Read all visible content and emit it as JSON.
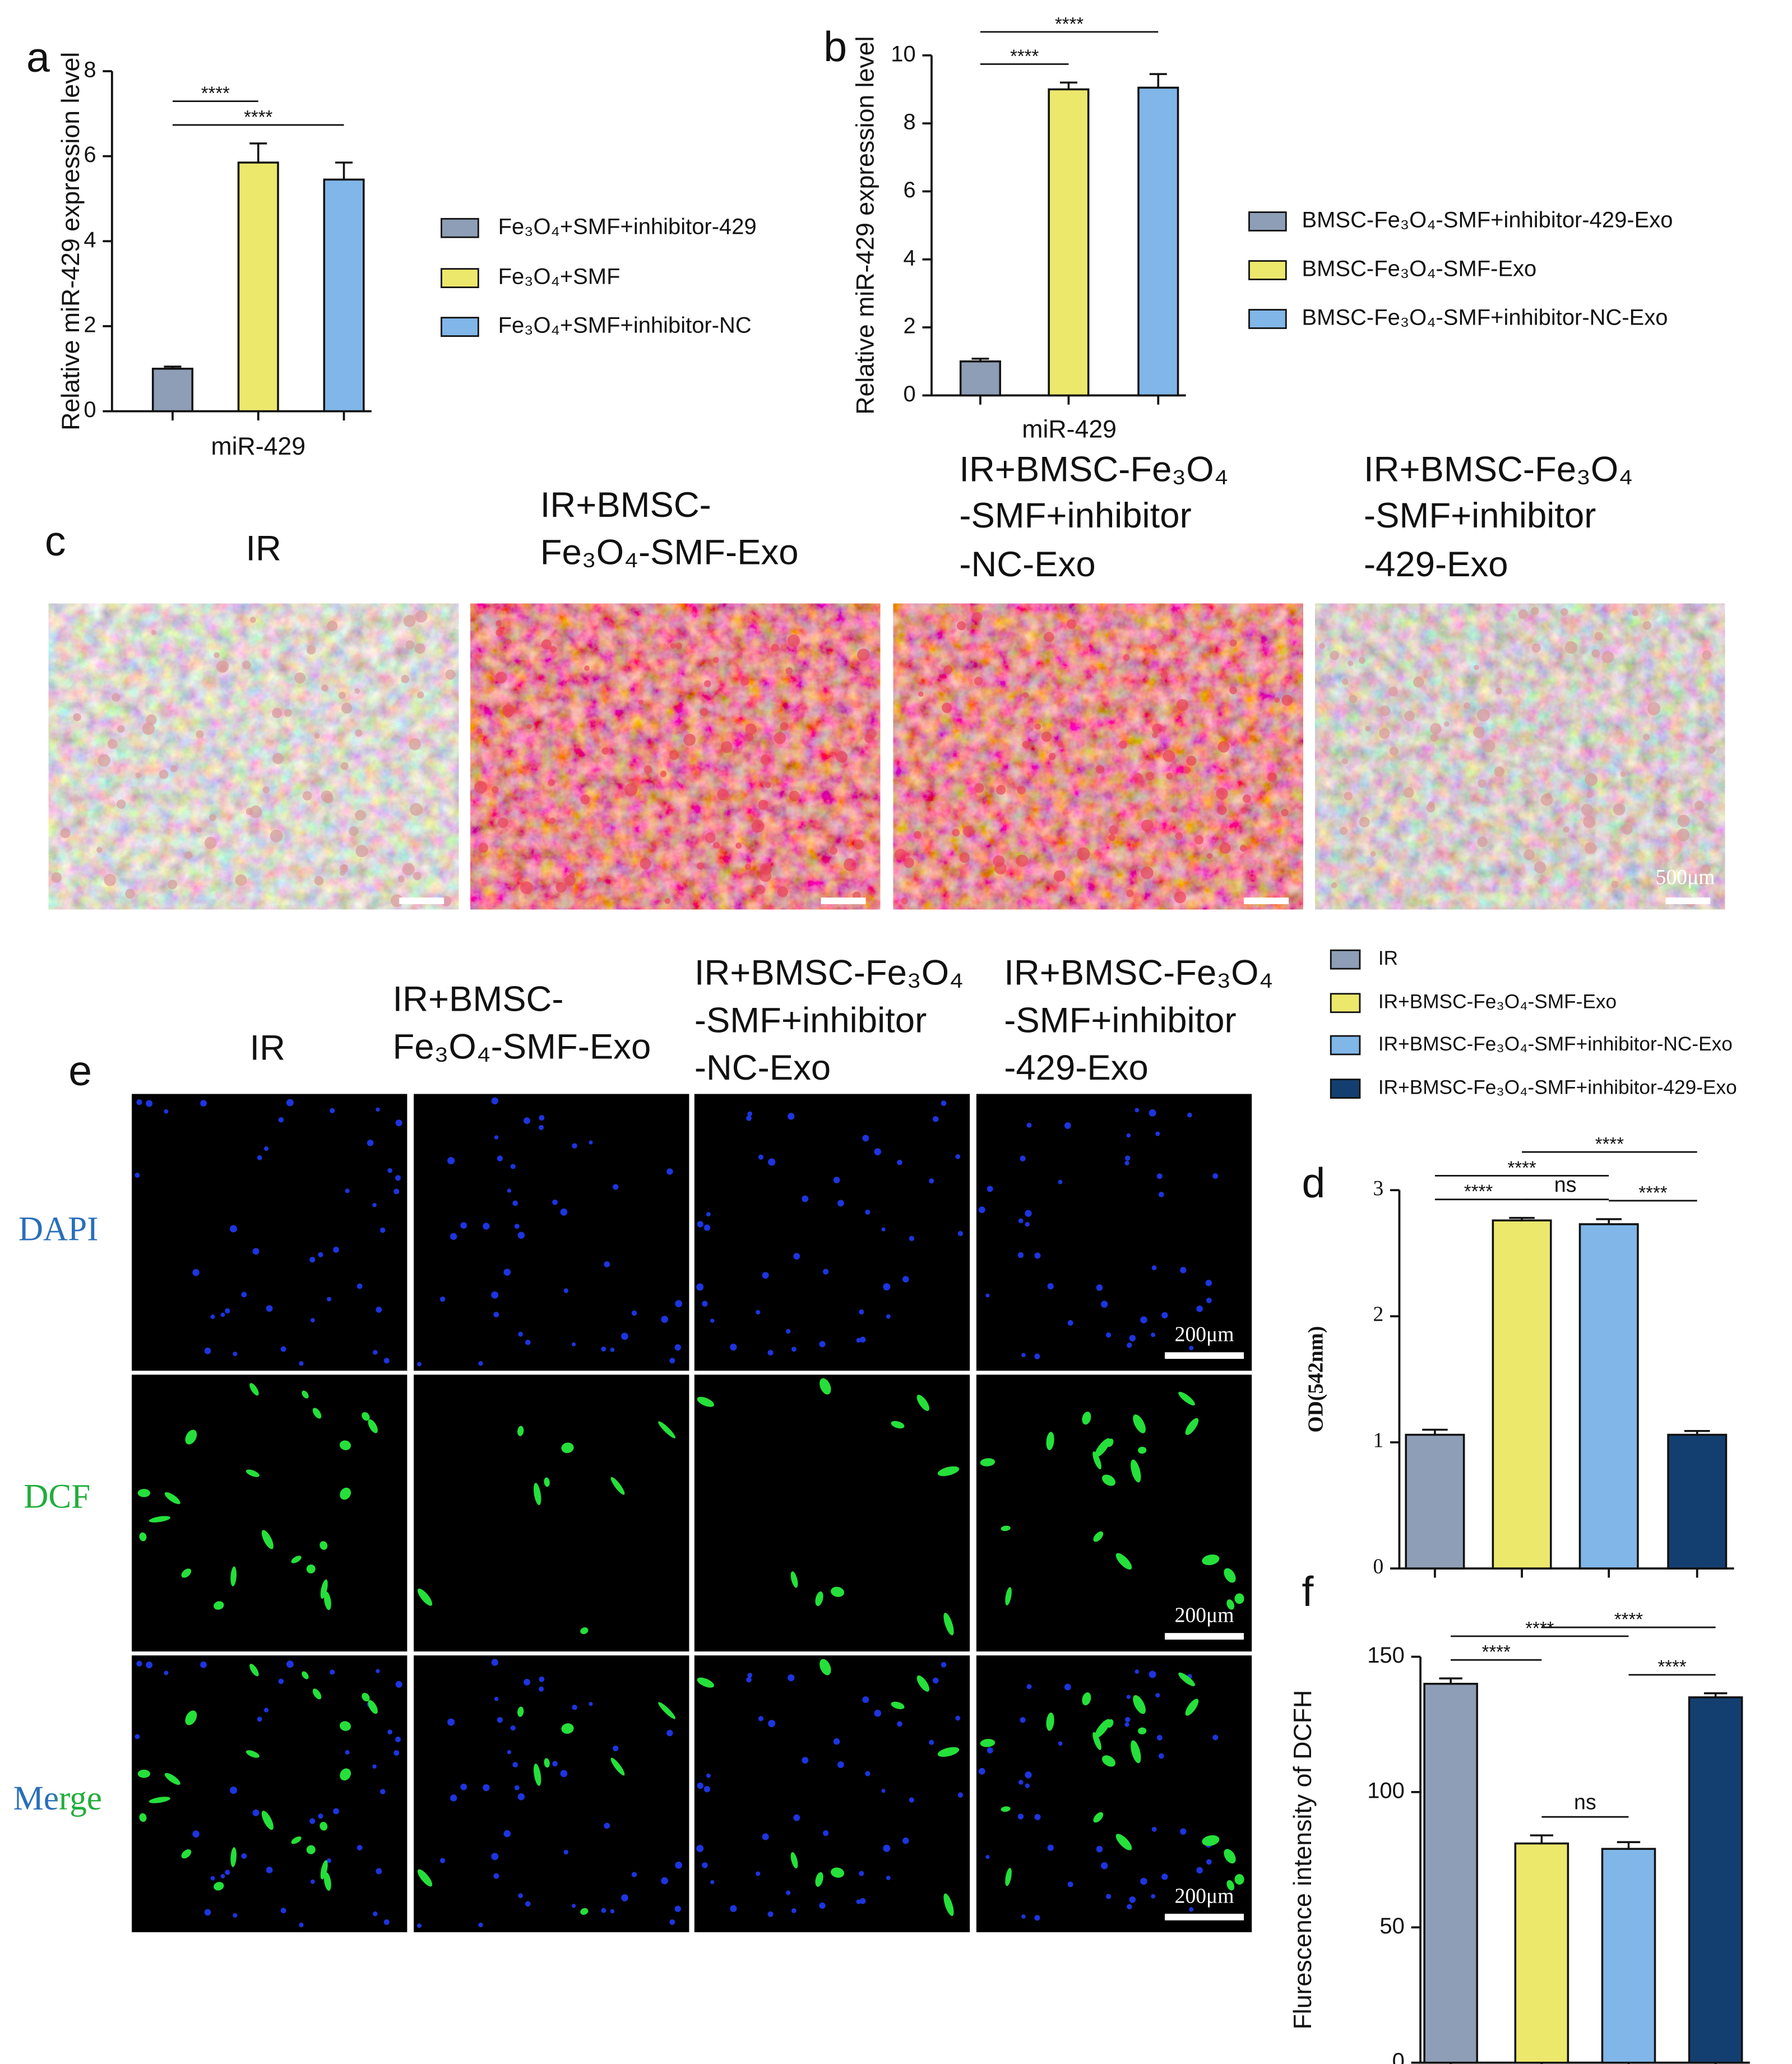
{
  "chart_data": [
    {
      "type": "bar",
      "panel": "a",
      "ylabel": "Relative miR-429 expression level",
      "categories": [
        "miR-429"
      ],
      "series": [
        {
          "name": "Fe₃O₄+SMF+inhibitor-429",
          "color": "#8e9eb6",
          "values": [
            1.0
          ],
          "errors": [
            0.05
          ]
        },
        {
          "name": "Fe₃O₄+SMF",
          "color": "#ece86c",
          "values": [
            5.85
          ],
          "errors": [
            0.45
          ]
        },
        {
          "name": "Fe₃O₄+SMF+inhibitor-NC",
          "color": "#80b6e8",
          "values": [
            5.45
          ],
          "errors": [
            0.4
          ]
        }
      ],
      "ylim": [
        0,
        8
      ],
      "yticks": [
        0,
        2,
        4,
        6,
        8
      ],
      "comparisons": [
        {
          "groups": [
            0,
            2
          ],
          "label": "****"
        },
        {
          "groups": [
            0,
            1
          ],
          "label": "****"
        }
      ]
    },
    {
      "type": "bar",
      "panel": "b",
      "ylabel": "Relative miR-429 expression level",
      "categories": [
        "miR-429"
      ],
      "series": [
        {
          "name": "BMSC-Fe₃O₄-SMF+inhibitor-429-Exo",
          "color": "#8e9eb6",
          "values": [
            1.0
          ],
          "errors": [
            0.08
          ]
        },
        {
          "name": "BMSC-Fe₃O₄-SMF-Exo",
          "color": "#ece86c",
          "values": [
            9.0
          ],
          "errors": [
            0.2
          ]
        },
        {
          "name": "BMSC-Fe₃O₄-SMF+inhibitor-NC-Exo",
          "color": "#80b6e8",
          "values": [
            9.05
          ],
          "errors": [
            0.4
          ]
        }
      ],
      "ylim": [
        0,
        10
      ],
      "yticks": [
        0,
        2,
        4,
        6,
        8,
        10
      ],
      "comparisons": [
        {
          "groups": [
            0,
            1
          ],
          "label": "****"
        },
        {
          "groups": [
            0,
            2
          ],
          "label": "****"
        }
      ]
    },
    {
      "type": "bar",
      "panel": "d",
      "ylabel": "OD(542nm)",
      "categories": [
        null
      ],
      "series": [
        {
          "name": "IR",
          "color": "#8e9eb6",
          "values": [
            1.06
          ],
          "errors": [
            0.04
          ]
        },
        {
          "name": "IR+BMSC-Fe₃O₄-SMF-Exo",
          "color": "#ece86c",
          "values": [
            2.76
          ],
          "errors": [
            0.02
          ]
        },
        {
          "name": "IR+BMSC-Fe₃O₄-SMF+inhibitor-NC-Exo",
          "color": "#80b6e8",
          "values": [
            2.73
          ],
          "errors": [
            0.04
          ]
        },
        {
          "name": "IR+BMSC-Fe₃O₄-SMF+inhibitor-429-Exo",
          "color": "#133f70",
          "values": [
            1.06
          ],
          "errors": [
            0.03
          ]
        }
      ],
      "ylim": [
        0,
        3
      ],
      "yticks": [
        0,
        1,
        2,
        3
      ],
      "comparisons": [
        {
          "groups": [
            0,
            1
          ],
          "label": "****"
        },
        {
          "groups": [
            1,
            2
          ],
          "label": "ns"
        },
        {
          "groups": [
            2,
            3
          ],
          "label": "****"
        },
        {
          "groups": [
            0,
            2
          ],
          "label": "****"
        },
        {
          "groups": [
            1,
            3
          ],
          "label": "****"
        }
      ]
    },
    {
      "type": "bar",
      "panel": "f",
      "ylabel": "Flurescence intensity of DCFH",
      "categories": [
        null
      ],
      "series": [
        {
          "color": "#8e9eb6",
          "values": [
            140
          ],
          "errors": [
            2
          ]
        },
        {
          "color": "#ece86c",
          "values": [
            81
          ],
          "errors": [
            3
          ]
        },
        {
          "color": "#80b6e8",
          "values": [
            79
          ],
          "errors": [
            2.5
          ]
        },
        {
          "color": "#133f70",
          "values": [
            135
          ],
          "errors": [
            1.5
          ]
        }
      ],
      "ylim": [
        0,
        150
      ],
      "yticks": [
        0,
        50,
        100,
        150
      ],
      "comparisons": [
        {
          "groups": [
            0,
            1
          ],
          "label": "****"
        },
        {
          "groups": [
            1,
            2
          ],
          "label": "ns"
        },
        {
          "groups": [
            2,
            3
          ],
          "label": "****"
        },
        {
          "groups": [
            0,
            2
          ],
          "label": "****"
        },
        {
          "groups": [
            1,
            3
          ],
          "label": "****"
        }
      ]
    }
  ],
  "panel_c": {
    "label": "c",
    "columns": [
      [
        "IR"
      ],
      [
        "IR+BMSC-",
        "Fe₃O₄-SMF-Exo"
      ],
      [
        "IR+BMSC-Fe₃O₄",
        "-SMF+inhibitor",
        "-NC-Exo"
      ],
      [
        "IR+BMSC-Fe₃O₄",
        "-SMF+inhibitor",
        "-429-Exo"
      ]
    ],
    "scale_bar": "500μm"
  },
  "panel_e": {
    "label": "e",
    "columns": [
      [
        "IR"
      ],
      [
        "IR+BMSC-",
        "Fe₃O₄-SMF-Exo"
      ],
      [
        "IR+BMSC-Fe₃O₄",
        "-SMF+inhibitor",
        "-NC-Exo"
      ],
      [
        "IR+BMSC-Fe₃O₄",
        "-SMF+inhibitor",
        "-429-Exo"
      ]
    ],
    "rows": [
      "DAPI",
      "DCF",
      "Merge"
    ],
    "scale_bar": "200μm"
  }
}
